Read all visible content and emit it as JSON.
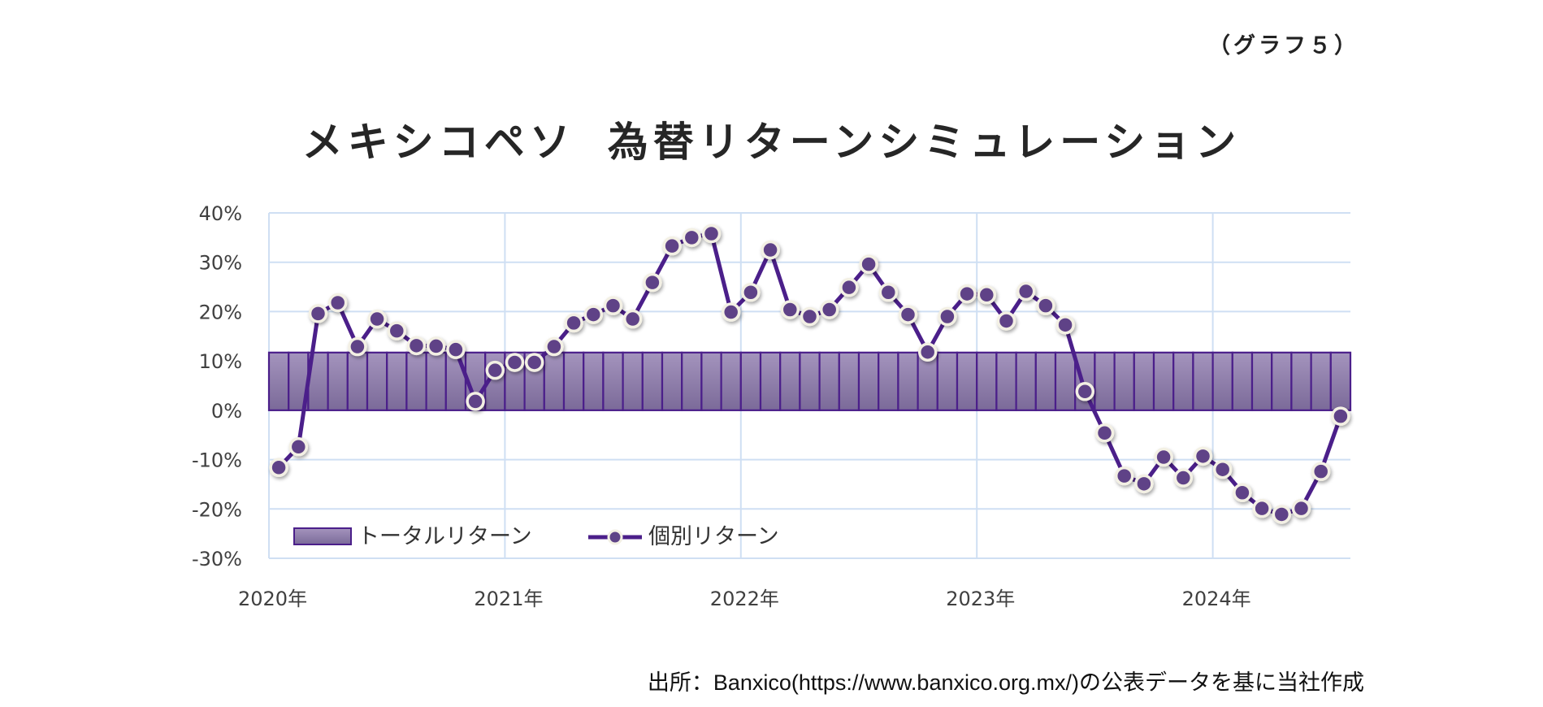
{
  "header": {
    "graph_label": "（グラフ５）",
    "title_part1": "メキシコペソ",
    "title_part2": "為替リターンシミュレーション"
  },
  "footer": {
    "source": "出所：Banxico(https://www.banxico.org.mx/)の公表データを基に当社作成"
  },
  "colors": {
    "bar_fill_top": "#a494bd",
    "bar_fill_bottom": "#7b6a99",
    "bar_border": "#4b1f8a",
    "line": "#4b1f8a",
    "marker_fill": "#5e4387",
    "marker_edge": "#f3f0e4",
    "grid": "#cfdff3",
    "text": "#404040"
  },
  "chart_data": {
    "type": "bar+line",
    "title": "メキシコペソ　為替リターンシミュレーション",
    "xlabel": "",
    "ylabel": "",
    "ylim": [
      -30,
      40
    ],
    "yticks": [
      40,
      30,
      20,
      10,
      0,
      -10,
      -20,
      -30
    ],
    "ytick_labels": [
      "40%",
      "30%",
      "20%",
      "10%",
      "0%",
      "-10%",
      "-20%",
      "-30%"
    ],
    "xtick_labels": [
      "2020年",
      "2021年",
      "2022年",
      "2023年",
      "2024年"
    ],
    "grid": true,
    "legend_position": "lower-left inside plot",
    "legend": [
      "トータルリターン",
      "個別リターン"
    ],
    "categories": [
      "2020-01",
      "2020-02",
      "2020-03",
      "2020-04",
      "2020-05",
      "2020-06",
      "2020-07",
      "2020-08",
      "2020-09",
      "2020-10",
      "2020-11",
      "2020-12",
      "2021-01",
      "2021-02",
      "2021-03",
      "2021-04",
      "2021-05",
      "2021-06",
      "2021-07",
      "2021-08",
      "2021-09",
      "2021-10",
      "2021-11",
      "2021-12",
      "2022-01",
      "2022-02",
      "2022-03",
      "2022-04",
      "2022-05",
      "2022-06",
      "2022-07",
      "2022-08",
      "2022-09",
      "2022-10",
      "2022-11",
      "2022-12",
      "2023-01",
      "2023-02",
      "2023-03",
      "2023-04",
      "2023-05",
      "2023-06",
      "2023-07",
      "2023-08",
      "2023-09",
      "2023-10",
      "2023-11",
      "2023-12",
      "2024-01",
      "2024-02",
      "2024-03",
      "2024-04",
      "2024-05",
      "2024-06",
      "2024-07"
    ],
    "series": [
      {
        "name": "トータルリターン",
        "type": "bar",
        "values": [
          11.7,
          11.7,
          11.7,
          11.7,
          11.7,
          11.7,
          11.7,
          11.7,
          11.7,
          11.7,
          11.7,
          11.7,
          11.7,
          11.7,
          11.7,
          11.7,
          11.7,
          11.7,
          11.7,
          11.7,
          11.7,
          11.7,
          11.7,
          11.7,
          11.7,
          11.7,
          11.7,
          11.7,
          11.7,
          11.7,
          11.7,
          11.7,
          11.7,
          11.7,
          11.7,
          11.7,
          11.7,
          11.7,
          11.7,
          11.7,
          11.7,
          11.7,
          11.7,
          11.7,
          11.7,
          11.7,
          11.7,
          11.7,
          11.7,
          11.7,
          11.7,
          11.7,
          11.7,
          11.7,
          11.7
        ]
      },
      {
        "name": "個別リターン",
        "type": "line",
        "values": [
          -11.6,
          -7.4,
          19.6,
          21.8,
          12.9,
          18.5,
          16.1,
          13.1,
          13.0,
          12.3,
          1.8,
          8.1,
          9.7,
          9.7,
          12.9,
          17.7,
          19.4,
          21.2,
          18.5,
          25.9,
          33.3,
          35.0,
          35.8,
          19.9,
          23.9,
          32.5,
          20.4,
          19.0,
          20.4,
          24.9,
          29.6,
          23.9,
          19.4,
          11.8,
          19.0,
          23.6,
          23.4,
          18.1,
          24.1,
          21.2,
          17.3,
          3.8,
          -4.6,
          -13.3,
          -14.9,
          -9.5,
          -13.7,
          -9.3,
          -12.0,
          -16.7,
          -19.9,
          -21.1,
          -19.9,
          -12.4,
          -1.2
        ]
      }
    ]
  }
}
